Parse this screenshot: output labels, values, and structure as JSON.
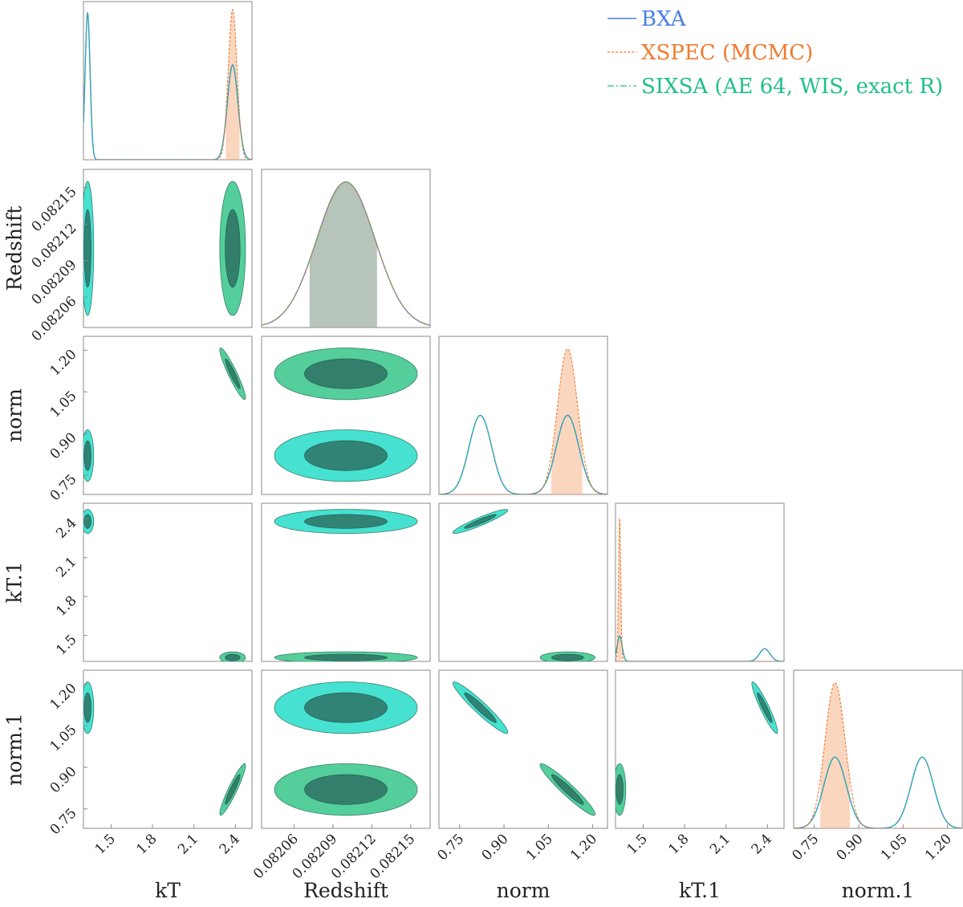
{
  "colors": {
    "bxa": "#4a7fe0",
    "xspec": "#f07a30",
    "xspec_fill": "#f5b58a",
    "sixsa": "#1fbf8a",
    "contour_green": "#36c58a",
    "contour_cyan": "#26dcc8",
    "contour_dark": "#2c6e60",
    "redshift_band": "#8aa08f"
  },
  "chart_data": {
    "type": "corner",
    "parameters": [
      "kT",
      "Redshift",
      "norm",
      "kT.1",
      "norm.1"
    ],
    "axis_ranges": {
      "kT": [
        1.3,
        2.52
      ],
      "Redshift": [
        0.082035,
        0.082165
      ],
      "norm": [
        0.68,
        1.25
      ],
      "kT.1": [
        1.3,
        2.52
      ],
      "norm.1": [
        0.68,
        1.25
      ]
    },
    "ticks": {
      "kT": [
        "1.5",
        "1.8",
        "2.1",
        "2.4"
      ],
      "Redshift": [
        "0.08206",
        "0.08209",
        "0.08212",
        "0.08215"
      ],
      "norm": [
        "0.75",
        "0.90",
        "1.05",
        "1.20"
      ],
      "kT.1": [
        "1.5",
        "1.8",
        "2.1",
        "2.4"
      ],
      "norm.1": [
        "0.75",
        "0.90",
        "1.05",
        "1.20"
      ]
    },
    "legend": {
      "position": "top-right",
      "entries": [
        {
          "label": "BXA",
          "style": "solid",
          "color": "#4a7fe0"
        },
        {
          "label": "XSPEC (MCMC)",
          "style": "dashed",
          "color": "#f07a30"
        },
        {
          "label": "SIXSA (AE 64, WIS, exact R)",
          "style": "dashdot",
          "color": "#1fbf8a"
        }
      ]
    },
    "marginals": {
      "kT": {
        "bxa_sixsa_modes": [
          {
            "mu": 1.33,
            "sigma": 0.018,
            "peak": 0.93
          },
          {
            "mu": 2.38,
            "sigma": 0.038,
            "peak": 0.6
          }
        ],
        "xspec_modes": [
          {
            "mu": 2.38,
            "sigma": 0.032,
            "peak": 0.95
          }
        ],
        "xspec_interval": [
          2.33,
          2.43
        ]
      },
      "Redshift": {
        "bxa_sixsa_modes": [
          {
            "mu": 0.0821,
            "sigma": 2.25e-05,
            "peak": 0.92
          }
        ],
        "xspec_modes": [
          {
            "mu": 0.0821,
            "sigma": 2.25e-05,
            "peak": 0.92
          }
        ],
        "interval": [
          0.082072,
          0.082124
        ]
      },
      "norm": {
        "bxa_sixsa_modes": [
          {
            "mu": 0.82,
            "sigma": 0.038,
            "peak": 0.5
          },
          {
            "mu": 1.115,
            "sigma": 0.038,
            "peak": 0.5
          }
        ],
        "xspec_modes": [
          {
            "mu": 1.115,
            "sigma": 0.034,
            "peak": 0.92
          }
        ],
        "xspec_interval": [
          1.06,
          1.165
        ]
      },
      "kT.1": {
        "bxa_sixsa_modes": [
          {
            "mu": 1.33,
            "sigma": 0.018,
            "peak": 0.16
          },
          {
            "mu": 2.38,
            "sigma": 0.038,
            "peak": 0.08
          }
        ],
        "xspec_modes": [
          {
            "mu": 1.33,
            "sigma": 0.008,
            "peak": 0.92
          }
        ],
        "xspec_interval": [
          1.315,
          1.345
        ]
      },
      "norm.1": {
        "bxa_sixsa_modes": [
          {
            "mu": 0.82,
            "sigma": 0.038,
            "peak": 0.45
          },
          {
            "mu": 1.115,
            "sigma": 0.038,
            "peak": 0.45
          }
        ],
        "xspec_modes": [
          {
            "mu": 0.82,
            "sigma": 0.034,
            "peak": 0.92
          }
        ],
        "xspec_interval": [
          0.77,
          0.87
        ]
      }
    },
    "joint_modes": [
      {
        "row": "Redshift",
        "col": "kT",
        "blobs": [
          {
            "cx": 1.33,
            "cy": 0.0821,
            "sx": 0.018,
            "sy": 2.25e-05,
            "rho": 0,
            "color": "cyan"
          },
          {
            "cx": 2.38,
            "cy": 0.0821,
            "sx": 0.038,
            "sy": 2.25e-05,
            "rho": 0,
            "color": "green"
          }
        ]
      },
      {
        "row": "norm",
        "col": "kT",
        "blobs": [
          {
            "cx": 1.33,
            "cy": 0.82,
            "sx": 0.018,
            "sy": 0.038,
            "rho": 0,
            "color": "cyan"
          },
          {
            "cx": 2.38,
            "cy": 1.115,
            "sx": 0.038,
            "sy": 0.038,
            "rho": -0.93,
            "color": "green"
          }
        ]
      },
      {
        "row": "norm",
        "col": "Redshift",
        "blobs": [
          {
            "cx": 0.0821,
            "cy": 0.82,
            "sx": 2.25e-05,
            "sy": 0.038,
            "rho": 0,
            "color": "cyan"
          },
          {
            "cx": 0.0821,
            "cy": 1.115,
            "sx": 2.25e-05,
            "sy": 0.038,
            "rho": 0,
            "color": "green"
          }
        ]
      },
      {
        "row": "kT.1",
        "col": "kT",
        "blobs": [
          {
            "cx": 1.33,
            "cy": 2.38,
            "sx": 0.018,
            "sy": 0.038,
            "rho": 0,
            "color": "cyan"
          },
          {
            "cx": 2.38,
            "cy": 1.33,
            "sx": 0.038,
            "sy": 0.018,
            "rho": 0,
            "color": "green"
          }
        ]
      },
      {
        "row": "kT.1",
        "col": "Redshift",
        "blobs": [
          {
            "cx": 0.0821,
            "cy": 2.38,
            "sx": 2.25e-05,
            "sy": 0.038,
            "rho": 0,
            "color": "cyan"
          },
          {
            "cx": 0.0821,
            "cy": 1.33,
            "sx": 2.25e-05,
            "sy": 0.018,
            "rho": 0,
            "color": "green"
          }
        ]
      },
      {
        "row": "kT.1",
        "col": "norm",
        "blobs": [
          {
            "cx": 0.82,
            "cy": 2.38,
            "sx": 0.038,
            "sy": 0.038,
            "rho": 0.93,
            "color": "cyan"
          },
          {
            "cx": 1.115,
            "cy": 1.33,
            "sx": 0.038,
            "sy": 0.018,
            "rho": 0,
            "color": "green"
          }
        ]
      },
      {
        "row": "norm.1",
        "col": "kT",
        "blobs": [
          {
            "cx": 1.33,
            "cy": 1.115,
            "sx": 0.018,
            "sy": 0.038,
            "rho": 0,
            "color": "cyan"
          },
          {
            "cx": 2.38,
            "cy": 0.82,
            "sx": 0.038,
            "sy": 0.038,
            "rho": 0.93,
            "color": "green"
          }
        ]
      },
      {
        "row": "norm.1",
        "col": "Redshift",
        "blobs": [
          {
            "cx": 0.0821,
            "cy": 1.115,
            "sx": 2.25e-05,
            "sy": 0.038,
            "rho": 0,
            "color": "cyan"
          },
          {
            "cx": 0.0821,
            "cy": 0.82,
            "sx": 2.25e-05,
            "sy": 0.038,
            "rho": 0,
            "color": "green"
          }
        ]
      },
      {
        "row": "norm.1",
        "col": "norm",
        "blobs": [
          {
            "cx": 0.82,
            "cy": 1.115,
            "sx": 0.038,
            "sy": 0.038,
            "rho": -0.95,
            "color": "cyan"
          },
          {
            "cx": 1.115,
            "cy": 0.82,
            "sx": 0.038,
            "sy": 0.038,
            "rho": -0.95,
            "color": "green"
          }
        ]
      },
      {
        "row": "norm.1",
        "col": "kT.1",
        "blobs": [
          {
            "cx": 1.33,
            "cy": 0.82,
            "sx": 0.018,
            "sy": 0.038,
            "rho": 0,
            "color": "green"
          },
          {
            "cx": 2.38,
            "cy": 1.115,
            "sx": 0.038,
            "sy": 0.038,
            "rho": -0.93,
            "color": "cyan"
          }
        ]
      }
    ]
  }
}
